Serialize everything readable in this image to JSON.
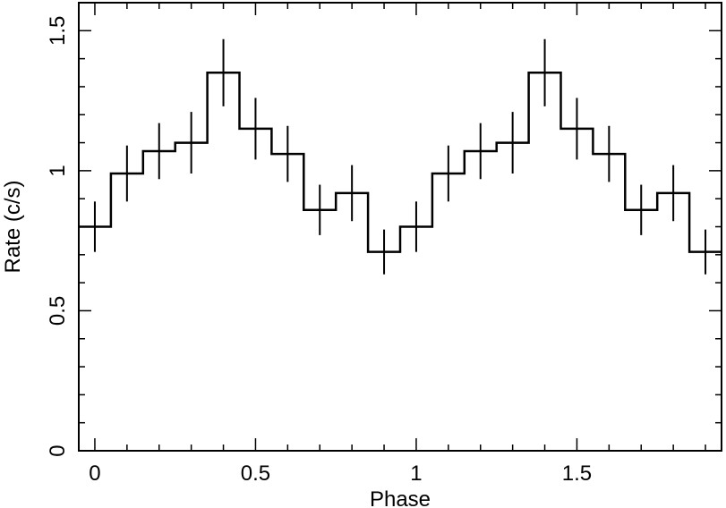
{
  "chart_data": {
    "type": "line",
    "style": "step-histogram-with-error-bars",
    "xlabel": "Phase",
    "ylabel": "Rate (c/s)",
    "xlim": [
      -0.05,
      1.95
    ],
    "ylim": [
      0,
      1.6
    ],
    "x_ticks": [
      0,
      0.5,
      1,
      1.5
    ],
    "x_tick_labels": [
      "0",
      "0.5",
      "1",
      "1.5"
    ],
    "y_ticks": [
      0,
      0.5,
      1,
      1.5
    ],
    "y_tick_labels": [
      "0",
      "0.5",
      "1",
      "1.5"
    ],
    "bin_width": 0.1,
    "series": [
      {
        "x": [
          0.0,
          0.1,
          0.2,
          0.3,
          0.4,
          0.5,
          0.6,
          0.7,
          0.8,
          0.9,
          1.0,
          1.1,
          1.2,
          1.3,
          1.4,
          1.5,
          1.6,
          1.7,
          1.8,
          1.9
        ],
        "values": [
          0.8,
          0.99,
          1.07,
          1.1,
          1.35,
          1.15,
          1.06,
          0.86,
          0.92,
          0.71,
          0.8,
          0.99,
          1.07,
          1.1,
          1.35,
          1.15,
          1.06,
          0.86,
          0.92,
          0.71
        ],
        "errors": [
          0.09,
          0.1,
          0.1,
          0.11,
          0.12,
          0.11,
          0.1,
          0.09,
          0.1,
          0.08,
          0.09,
          0.1,
          0.1,
          0.11,
          0.12,
          0.11,
          0.1,
          0.09,
          0.1,
          0.08
        ]
      }
    ],
    "grid": false,
    "legend": "none"
  }
}
